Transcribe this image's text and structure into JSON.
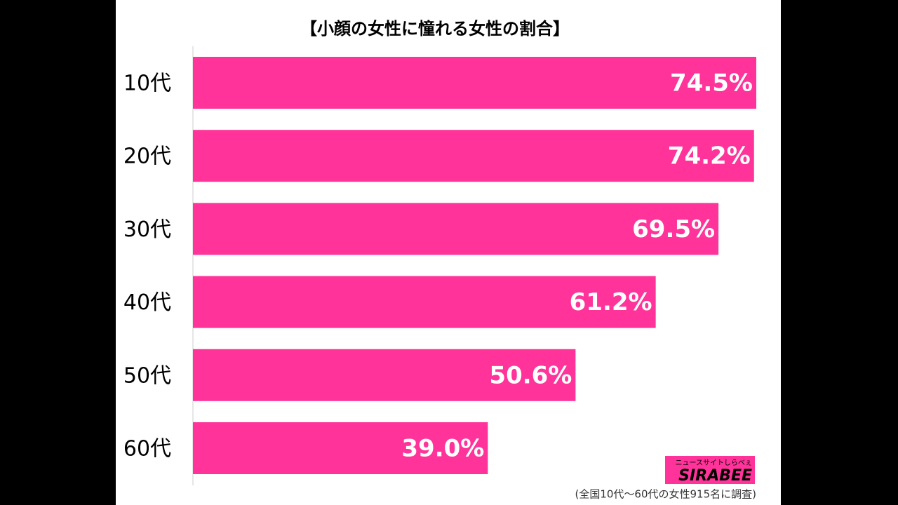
{
  "chart_data": {
    "type": "bar",
    "orientation": "horizontal",
    "title": "【小顔の女性に憧れる女性の割合】",
    "categories": [
      "10代",
      "20代",
      "30代",
      "40代",
      "50代",
      "60代"
    ],
    "values": [
      74.5,
      74.2,
      69.5,
      61.2,
      50.6,
      39.0
    ],
    "value_labels": [
      "74.5%",
      "74.2%",
      "69.5%",
      "61.2%",
      "50.6%",
      "39.0%"
    ],
    "color": "#ff3399",
    "xlim": [
      0,
      74.5
    ],
    "note": "(全国10代～60代の女性915名に調査)",
    "logo": {
      "text": "SIRABEE",
      "tagline": "ニュースサイトしらべぇ"
    }
  }
}
